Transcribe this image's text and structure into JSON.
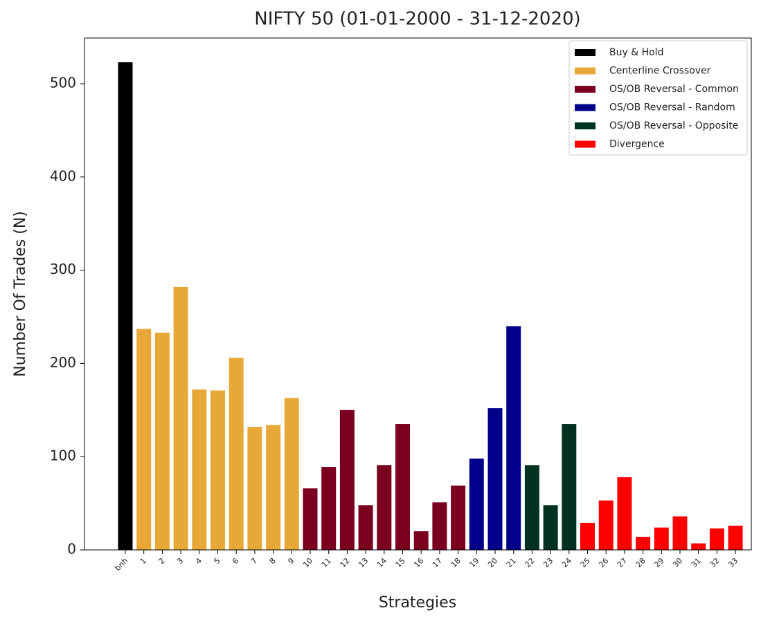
{
  "chart_data": {
    "type": "bar",
    "title": "NIFTY 50 (01-01-2000 - 31-12-2020)",
    "x_label": "Strategies",
    "y_label": "Number Of Trades (N)",
    "categories": [
      "bnh",
      "1",
      "2",
      "3",
      "4",
      "5",
      "6",
      "7",
      "8",
      "9",
      "10",
      "11",
      "12",
      "13",
      "14",
      "15",
      "16",
      "17",
      "18",
      "19",
      "20",
      "21",
      "22",
      "23",
      "24",
      "25",
      "26",
      "27",
      "28",
      "29",
      "30",
      "31",
      "32",
      "33"
    ],
    "series": [
      {
        "name": "Buy & Hold",
        "color": "#000000",
        "values": [
          523,
          null,
          null,
          null,
          null,
          null,
          null,
          null,
          null,
          null,
          null,
          null,
          null,
          null,
          null,
          null,
          null,
          null,
          null,
          null,
          null,
          null,
          null,
          null,
          null,
          null,
          null,
          null,
          null,
          null,
          null,
          null,
          null,
          null
        ]
      },
      {
        "name": "Centerline Crossover",
        "color": "#e8a838",
        "values": [
          null,
          237,
          233,
          282,
          172,
          171,
          206,
          132,
          134,
          163,
          null,
          null,
          null,
          null,
          null,
          null,
          null,
          null,
          null,
          null,
          null,
          null,
          null,
          null,
          null,
          null,
          null,
          null,
          null,
          null,
          null,
          null,
          null,
          null
        ]
      },
      {
        "name": "OS/OB Reversal - Common",
        "color": "#7b0020",
        "values": [
          null,
          null,
          null,
          null,
          null,
          null,
          null,
          null,
          null,
          null,
          66,
          89,
          150,
          48,
          91,
          135,
          20,
          51,
          69,
          null,
          null,
          null,
          null,
          null,
          null,
          null,
          null,
          null,
          null,
          null,
          null,
          null,
          null,
          null
        ]
      },
      {
        "name": "OS/OB Reversal - Random",
        "color": "#00008b",
        "values": [
          null,
          null,
          null,
          null,
          null,
          null,
          null,
          null,
          null,
          null,
          null,
          null,
          null,
          null,
          null,
          null,
          null,
          null,
          null,
          98,
          152,
          240,
          null,
          null,
          null,
          null,
          null,
          null,
          null,
          null,
          null,
          null,
          null,
          null
        ]
      },
      {
        "name": "OS/OB Reversal - Opposite",
        "color": "#00331f",
        "values": [
          null,
          null,
          null,
          null,
          null,
          null,
          null,
          null,
          null,
          null,
          null,
          null,
          null,
          null,
          null,
          null,
          null,
          null,
          null,
          null,
          null,
          null,
          91,
          48,
          135,
          null,
          null,
          null,
          null,
          null,
          null,
          null,
          null,
          null
        ]
      },
      {
        "name": "Divergence",
        "color": "#ff0000",
        "values": [
          null,
          null,
          null,
          null,
          null,
          null,
          null,
          null,
          null,
          null,
          null,
          null,
          null,
          null,
          null,
          null,
          null,
          null,
          null,
          null,
          null,
          null,
          null,
          null,
          null,
          29,
          53,
          78,
          14,
          24,
          36,
          7,
          23,
          26
        ]
      }
    ],
    "ylim": [
      0,
      549
    ],
    "yticks": [
      0,
      100,
      200,
      300,
      400,
      500
    ],
    "legend": "upper right"
  }
}
